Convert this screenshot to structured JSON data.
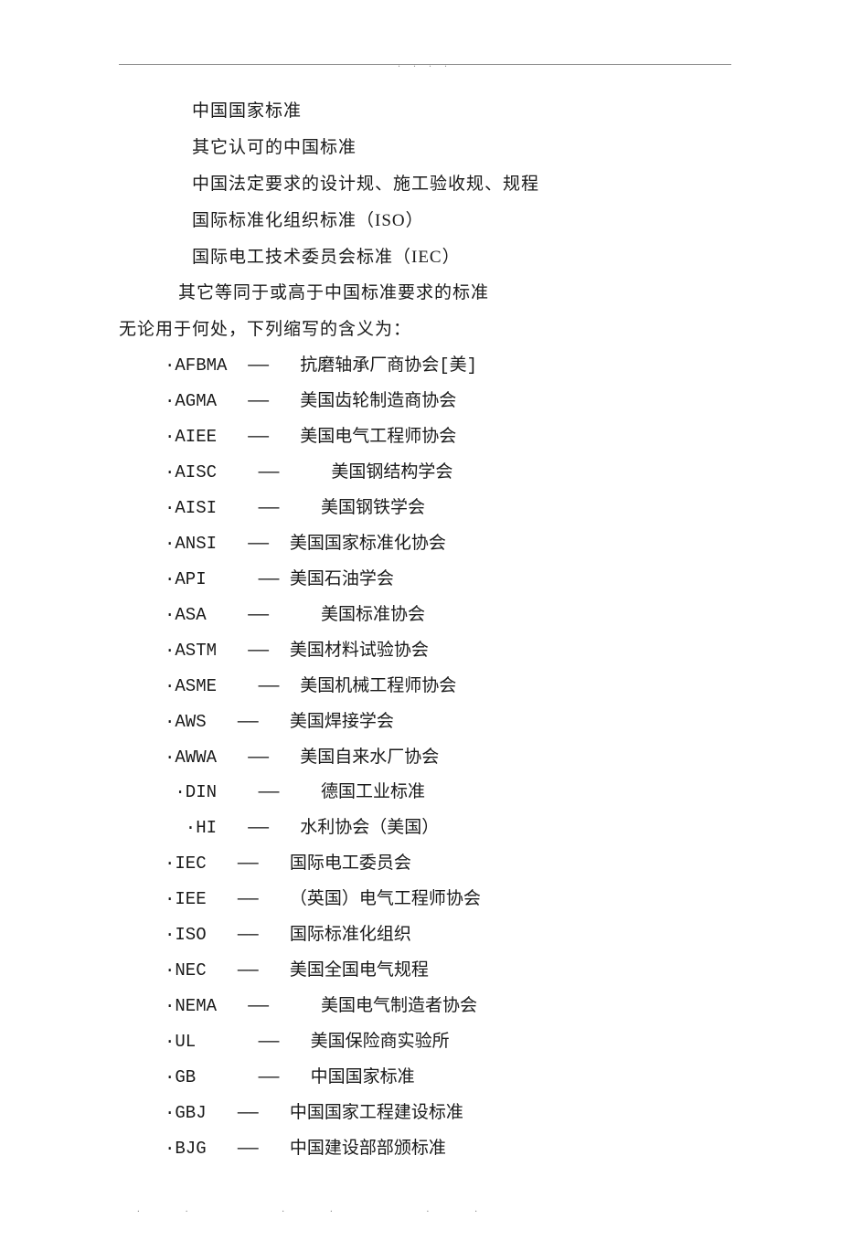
{
  "intro": {
    "lines": [
      "中国国家标准",
      "其它认可的中国标准",
      "中国法定要求的设计规、施工验收规、规程",
      "国际标准化组织标准（ISO）",
      "国际电工技术委员会标准（IEC）"
    ],
    "line_alt": "其它等同于或高于中国标准要求的标准",
    "line_lead": "无论用于何处，下列缩写的含义为："
  },
  "abbrs": [
    {
      "text": "·AFBMA  ——   抗磨轴承厂商协会[美]"
    },
    {
      "text": "·AGMA   ——   美国齿轮制造商协会"
    },
    {
      "text": "·AIEE   ——   美国电气工程师协会"
    },
    {
      "text": "·AISC    ——     美国钢结构学会"
    },
    {
      "text": "·AISI    ——    美国钢铁学会"
    },
    {
      "text": "·ANSI   ——  美国国家标准化协会"
    },
    {
      "text": "·API     —— 美国石油学会"
    },
    {
      "text": "·ASA    ——     美国标准协会"
    },
    {
      "text": "·ASTM   ——  美国材料试验协会"
    },
    {
      "text": "·ASME    ——  美国机械工程师协会"
    },
    {
      "text": "·AWS   ——   美国焊接学会"
    },
    {
      "text": "·AWWA   ——   美国自来水厂协会"
    },
    {
      "text": " ·DIN    ——    德国工业标准"
    },
    {
      "text": "  ·HI   ——   水利协会（美国）"
    },
    {
      "text": "·IEC   ——   国际电工委员会"
    },
    {
      "text": "·IEE   ——   （英国）电气工程师协会"
    },
    {
      "text": "·ISO   ——   国际标准化组织"
    },
    {
      "text": "·NEC   ——   美国全国电气规程"
    },
    {
      "text": "·NEMA   ——     美国电气制造者协会"
    },
    {
      "text": "·UL      ——   美国保险商实验所"
    },
    {
      "text": "·GB      ——   中国国家标准"
    },
    {
      "text": "·GBJ   ——   中国国家工程建设标准"
    },
    {
      "text": "·BJG   ——   中国建设部部颁标准"
    }
  ],
  "footer_dots": "...."
}
